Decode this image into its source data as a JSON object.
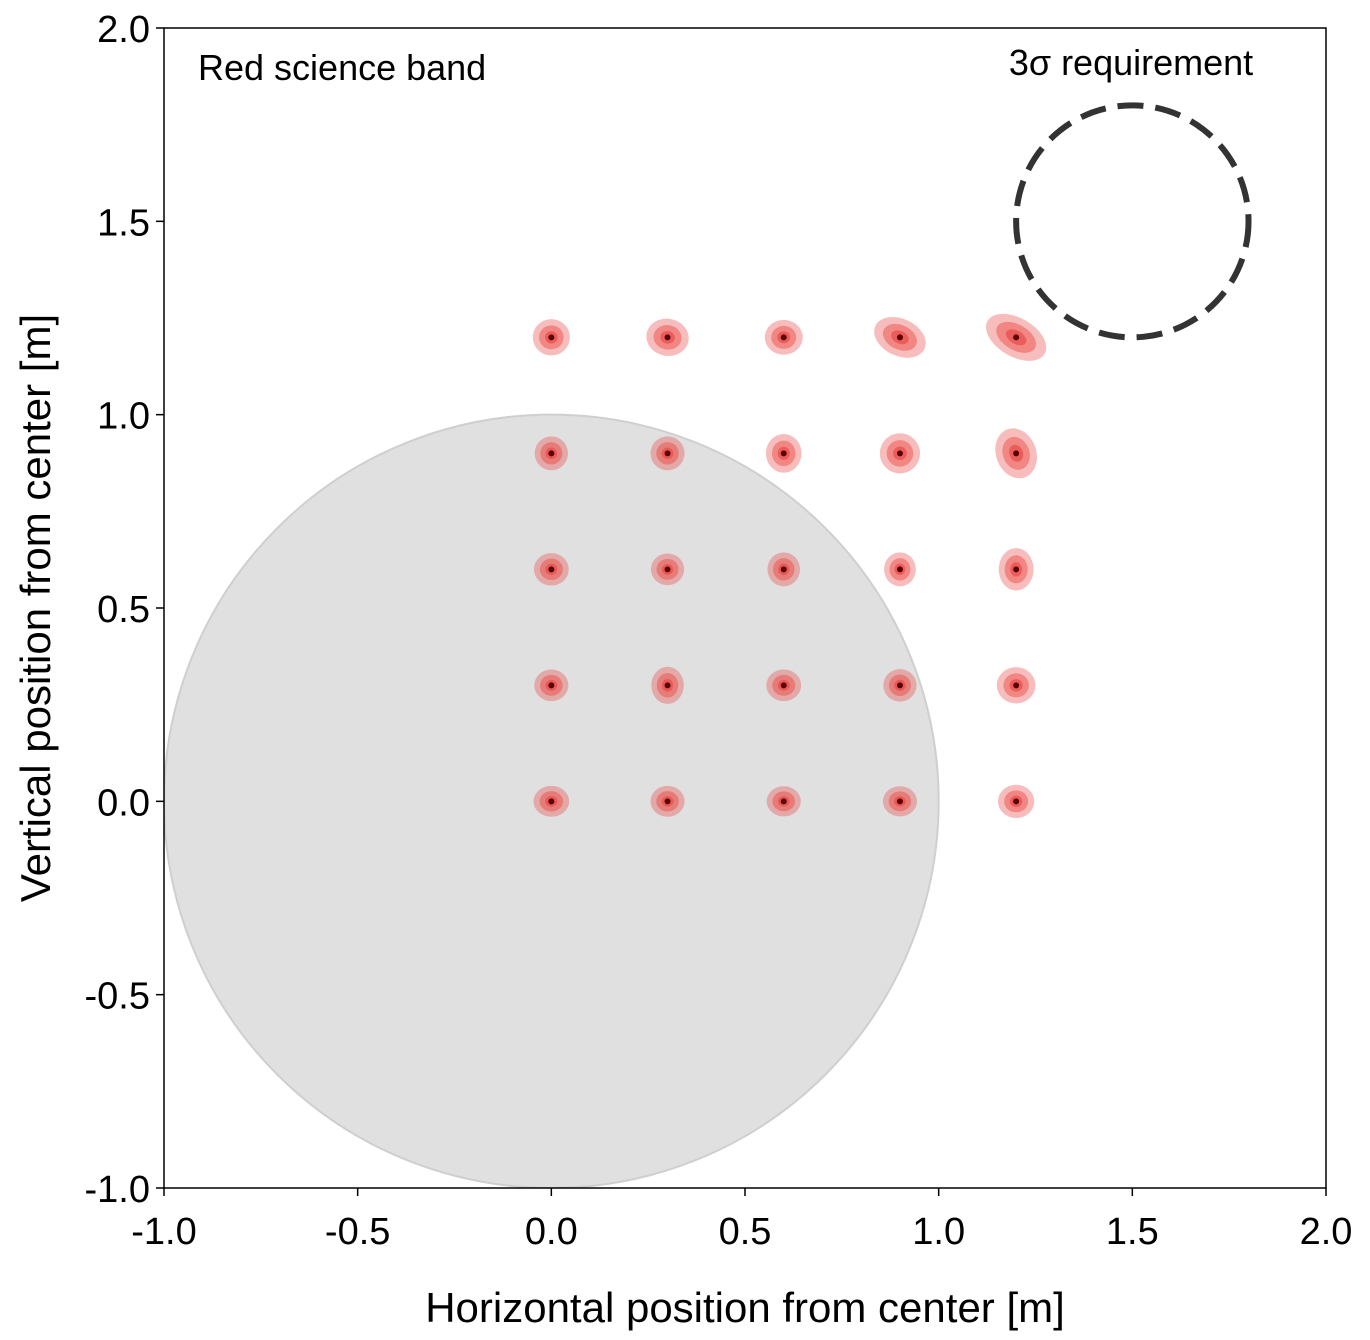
{
  "chart_data": {
    "type": "scatter",
    "title": "",
    "xlabel": "Horizontal position from center [m]",
    "ylabel": "Vertical position from center [m]",
    "xlim": [
      -1.0,
      2.0
    ],
    "ylim": [
      -1.0,
      2.0
    ],
    "xticks": [
      -1.0,
      -0.5,
      0.0,
      0.5,
      1.0,
      1.5,
      2.0
    ],
    "yticks": [
      -1.0,
      -0.5,
      0.0,
      0.5,
      1.0,
      1.5,
      2.0
    ],
    "xtick_labels": [
      "-1.0",
      "-0.5",
      "0.0",
      "0.5",
      "1.0",
      "1.5",
      "2.0"
    ],
    "ytick_labels": [
      "-1.0",
      "-0.5",
      "0.0",
      "0.5",
      "1.0",
      "1.5",
      "2.0"
    ],
    "grid": false,
    "band_label": "Red science band",
    "requirement_label": "3σ requirement",
    "aperture": {
      "center": [
        0.0,
        0.0
      ],
      "radius": 1.0,
      "color": "#e0e0e0"
    },
    "requirement_circle": {
      "center": [
        1.5,
        1.5
      ],
      "radius": 0.3,
      "color": "#333333",
      "style": "dashed"
    },
    "ellipse_color": "#e8423f",
    "point_color": "#5a0000",
    "points": [
      {
        "x": 0.0,
        "y": 0.0,
        "sx": 0.046,
        "sy": 0.04,
        "angle": 0
      },
      {
        "x": 0.3,
        "y": 0.0,
        "sx": 0.044,
        "sy": 0.04,
        "angle": 0
      },
      {
        "x": 0.6,
        "y": 0.0,
        "sx": 0.044,
        "sy": 0.039,
        "angle": 0
      },
      {
        "x": 0.9,
        "y": 0.0,
        "sx": 0.044,
        "sy": 0.039,
        "angle": 0
      },
      {
        "x": 1.2,
        "y": 0.0,
        "sx": 0.047,
        "sy": 0.043,
        "angle": 0
      },
      {
        "x": 0.0,
        "y": 0.3,
        "sx": 0.044,
        "sy": 0.041,
        "angle": 0
      },
      {
        "x": 0.3,
        "y": 0.3,
        "sx": 0.042,
        "sy": 0.048,
        "angle": 0
      },
      {
        "x": 0.6,
        "y": 0.3,
        "sx": 0.045,
        "sy": 0.041,
        "angle": 0
      },
      {
        "x": 0.9,
        "y": 0.3,
        "sx": 0.043,
        "sy": 0.042,
        "angle": 0
      },
      {
        "x": 1.2,
        "y": 0.3,
        "sx": 0.05,
        "sy": 0.047,
        "angle": 0
      },
      {
        "x": 0.0,
        "y": 0.6,
        "sx": 0.045,
        "sy": 0.042,
        "angle": 0
      },
      {
        "x": 0.3,
        "y": 0.6,
        "sx": 0.043,
        "sy": 0.041,
        "angle": 0
      },
      {
        "x": 0.6,
        "y": 0.6,
        "sx": 0.042,
        "sy": 0.044,
        "angle": 0
      },
      {
        "x": 0.9,
        "y": 0.6,
        "sx": 0.041,
        "sy": 0.044,
        "angle": 0
      },
      {
        "x": 1.2,
        "y": 0.6,
        "sx": 0.045,
        "sy": 0.055,
        "angle": 0
      },
      {
        "x": 0.0,
        "y": 0.9,
        "sx": 0.043,
        "sy": 0.044,
        "angle": 0
      },
      {
        "x": 0.3,
        "y": 0.9,
        "sx": 0.044,
        "sy": 0.044,
        "angle": 0
      },
      {
        "x": 0.6,
        "y": 0.9,
        "sx": 0.046,
        "sy": 0.05,
        "angle": 0
      },
      {
        "x": 0.9,
        "y": 0.9,
        "sx": 0.052,
        "sy": 0.052,
        "angle": 0
      },
      {
        "x": 1.2,
        "y": 0.9,
        "sx": 0.052,
        "sy": 0.066,
        "angle": -20
      },
      {
        "x": 0.0,
        "y": 1.2,
        "sx": 0.048,
        "sy": 0.047,
        "angle": 0
      },
      {
        "x": 0.3,
        "y": 1.2,
        "sx": 0.055,
        "sy": 0.048,
        "angle": 10
      },
      {
        "x": 0.6,
        "y": 1.2,
        "sx": 0.049,
        "sy": 0.045,
        "angle": 0
      },
      {
        "x": 0.9,
        "y": 1.2,
        "sx": 0.07,
        "sy": 0.048,
        "angle": 25
      },
      {
        "x": 1.2,
        "y": 1.2,
        "sx": 0.085,
        "sy": 0.05,
        "angle": 30
      }
    ]
  }
}
